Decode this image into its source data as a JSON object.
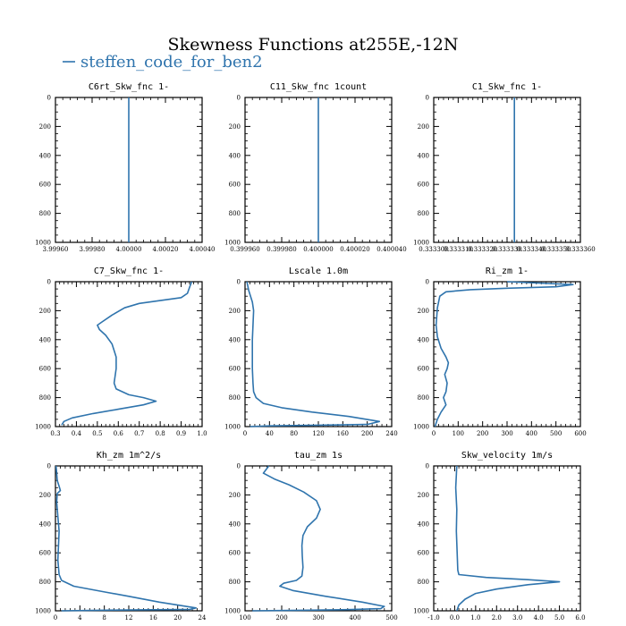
{
  "title": "Skewness Functions at255E,-12N",
  "legend": "steffen_code_for_ben2",
  "colors": {
    "series": "#2f74ad",
    "axis": "#000000"
  },
  "chart_data": [
    {
      "type": "line",
      "title": "C6rt_Skw_fnc   1-",
      "xlim": [
        3.9996,
        4.0004
      ],
      "xticks": [
        3.9996,
        3.9998,
        4.0,
        4.0002,
        4.0004
      ],
      "xticklabels": [
        "3.99960",
        "3.99980",
        "4.00000",
        "4.00020",
        "4.00040"
      ],
      "ylim": [
        1000,
        0
      ],
      "yticks": [
        0,
        200,
        400,
        600,
        800,
        1000
      ],
      "series": [
        {
          "x": [
            4.0,
            4.0
          ],
          "y": [
            0,
            1000
          ]
        }
      ]
    },
    {
      "type": "line",
      "title": "C11_Skw_fnc   1count",
      "xlim": [
        0.39996,
        0.40004
      ],
      "xticks": [
        0.39996,
        0.39998,
        0.4,
        0.40002,
        0.40004
      ],
      "xticklabels": [
        "0.399960",
        "0.399980",
        "0.400000",
        "0.400020",
        "0.400040"
      ],
      "ylim": [
        1000,
        0
      ],
      "yticks": [
        0,
        200,
        400,
        600,
        800,
        1000
      ],
      "series": [
        {
          "x": [
            0.4,
            0.4
          ],
          "y": [
            0,
            1000
          ]
        }
      ]
    },
    {
      "type": "line",
      "title": "C1_Skw_fnc   1-",
      "xlim": [
        0,
        6
      ],
      "xticks": [
        0,
        1,
        2,
        3,
        4,
        5,
        6
      ],
      "xticklabels": [
        "0.333300",
        "0.333310",
        "0.333320",
        "0.333330",
        "0.333340",
        "0.333350",
        "0.333360"
      ],
      "ylim": [
        1000,
        0
      ],
      "yticks": [
        0,
        200,
        400,
        600,
        800,
        1000
      ],
      "series": [
        {
          "x": [
            3.3,
            3.3
          ],
          "y": [
            0,
            1000
          ]
        }
      ]
    },
    {
      "type": "line",
      "title": "C7_Skw_fnc   1-",
      "xlim": [
        0.3,
        1.0
      ],
      "xticks": [
        0.3,
        0.4,
        0.5,
        0.6,
        0.7,
        0.8,
        0.9,
        1.0
      ],
      "xticklabels": [
        "0.3",
        "0.4",
        "0.5",
        "0.6",
        "0.7",
        "0.8",
        "0.9",
        "1.0"
      ],
      "ylim": [
        1000,
        0
      ],
      "yticks": [
        0,
        200,
        400,
        600,
        800,
        1000
      ],
      "series": [
        {
          "x": [
            0.95,
            0.94,
            0.93,
            0.9,
            0.8,
            0.7,
            0.63,
            0.57,
            0.52,
            0.5,
            0.51,
            0.54,
            0.57,
            0.59,
            0.59,
            0.58,
            0.59,
            0.65,
            0.72,
            0.78,
            0.72,
            0.6,
            0.48,
            0.38,
            0.34,
            0.33
          ],
          "y": [
            0,
            40,
            80,
            110,
            130,
            150,
            180,
            230,
            280,
            300,
            330,
            370,
            430,
            520,
            600,
            700,
            740,
            780,
            800,
            825,
            850,
            880,
            910,
            940,
            965,
            990
          ]
        }
      ]
    },
    {
      "type": "line",
      "title": "Lscale   1.0m",
      "xlim": [
        0,
        240
      ],
      "xticks": [
        0,
        40,
        80,
        120,
        160,
        200,
        240
      ],
      "xticklabels": [
        "0",
        "40",
        "80",
        "120",
        "160",
        "200",
        "240"
      ],
      "ylim": [
        1000,
        0
      ],
      "yticks": [
        0,
        200,
        400,
        600,
        800,
        1000
      ],
      "series": [
        {
          "x": [
            3,
            6,
            12,
            14,
            13,
            12,
            12,
            12,
            13,
            14,
            18,
            30,
            60,
            110,
            170,
            220,
            200,
            120,
            40,
            8
          ],
          "y": [
            0,
            60,
            140,
            200,
            300,
            400,
            500,
            600,
            700,
            760,
            800,
            840,
            870,
            900,
            930,
            965,
            985,
            990,
            995,
            1000
          ]
        }
      ]
    },
    {
      "type": "line",
      "title": "Ri_zm   1-",
      "xlim": [
        0,
        600
      ],
      "xticks": [
        0,
        100,
        200,
        300,
        400,
        500,
        600
      ],
      "xticklabels": [
        "0",
        "100",
        "200",
        "300",
        "400",
        "500",
        "600"
      ],
      "ylim": [
        1000,
        0
      ],
      "yticks": [
        0,
        200,
        400,
        600,
        800,
        1000
      ],
      "series": [
        {
          "x": [
            300,
            570,
            500,
            300,
            150,
            50,
            25,
            15,
            10,
            15,
            30,
            50,
            60,
            55,
            45,
            55,
            50,
            40,
            50,
            30,
            15,
            5
          ],
          "y": [
            0,
            20,
            35,
            45,
            55,
            70,
            100,
            180,
            300,
            380,
            460,
            520,
            560,
            600,
            640,
            700,
            760,
            800,
            850,
            900,
            950,
            1000
          ]
        }
      ]
    },
    {
      "type": "line",
      "title": "Kh_zm   1m^2/s",
      "xlim": [
        0,
        24
      ],
      "xticks": [
        0,
        4,
        8,
        12,
        16,
        20,
        24
      ],
      "xticklabels": [
        "0",
        "4",
        "8",
        "12",
        "16",
        "20",
        "24"
      ],
      "ylim": [
        1000,
        0
      ],
      "yticks": [
        0,
        200,
        400,
        600,
        800,
        1000
      ],
      "series": [
        {
          "x": [
            0.1,
            0.3,
            0.6,
            0.8,
            0.3,
            0.2,
            0.4,
            0.6,
            0.5,
            0.4,
            0.6,
            1.0,
            3,
            8,
            12,
            17,
            23,
            22,
            10,
            1
          ],
          "y": [
            0,
            100,
            140,
            170,
            190,
            250,
            350,
            450,
            550,
            650,
            750,
            790,
            830,
            870,
            900,
            940,
            980,
            990,
            995,
            1000
          ]
        }
      ]
    },
    {
      "type": "line",
      "title": "tau_zm   1s",
      "xlim": [
        100,
        500
      ],
      "xticks": [
        100,
        200,
        300,
        400,
        500
      ],
      "xticklabels": [
        "100",
        "200",
        "300",
        "400",
        "500"
      ],
      "ylim": [
        1000,
        0
      ],
      "yticks": [
        0,
        200,
        400,
        600,
        800,
        1000
      ],
      "series": [
        {
          "x": [
            165,
            150,
            180,
            220,
            260,
            295,
            305,
            295,
            270,
            258,
            255,
            256,
            258,
            255,
            240,
            205,
            195,
            230,
            320,
            420,
            480,
            470,
            380,
            250,
            120
          ],
          "y": [
            0,
            50,
            90,
            130,
            180,
            240,
            300,
            360,
            420,
            480,
            550,
            620,
            700,
            760,
            790,
            810,
            830,
            860,
            900,
            940,
            970,
            985,
            992,
            996,
            1000
          ]
        }
      ]
    },
    {
      "type": "line",
      "title": "Skw_velocity   1m/s",
      "xlim": [
        -1.0,
        6.0
      ],
      "xticks": [
        -1,
        0,
        1,
        2,
        3,
        4,
        5,
        6
      ],
      "xticklabels": [
        "-1.0",
        "0.0",
        "1.0",
        "2.0",
        "3.0",
        "4.0",
        "5.0",
        "6.0"
      ],
      "ylim": [
        1000,
        0
      ],
      "yticks": [
        0,
        200,
        400,
        600,
        800,
        1000
      ],
      "series": [
        {
          "x": [
            0.1,
            0.05,
            0.1,
            0.08,
            0.12,
            0.15,
            0.2,
            1.5,
            3.5,
            5.0,
            3.5,
            2.0,
            1.0,
            0.5,
            0.2,
            0.1
          ],
          "y": [
            0,
            150,
            300,
            450,
            600,
            720,
            750,
            770,
            785,
            800,
            820,
            850,
            880,
            920,
            960,
            1000
          ]
        }
      ]
    }
  ]
}
